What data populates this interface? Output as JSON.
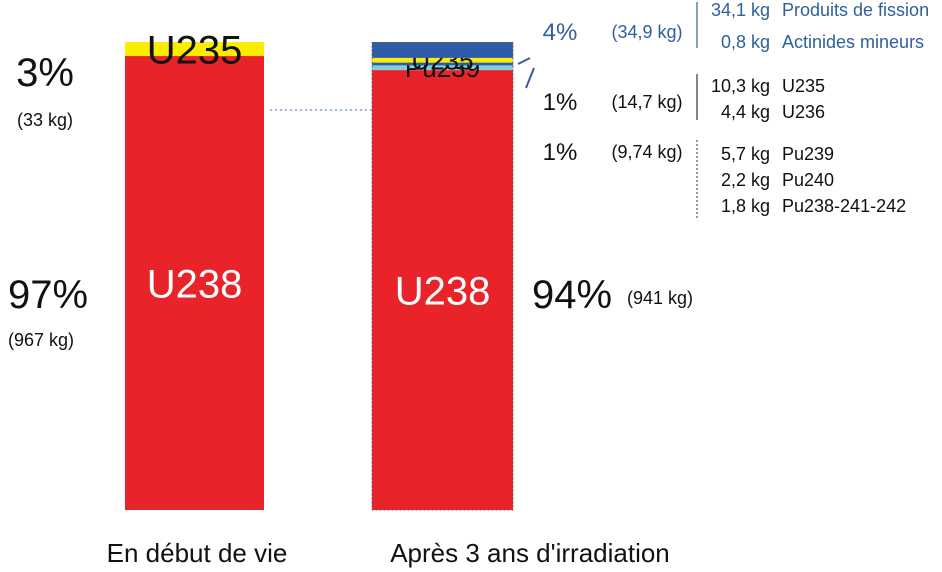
{
  "chart_data": {
    "type": "bar",
    "stacked": true,
    "categories": [
      "En début de vie",
      "Après 3 ans d'irradiation"
    ],
    "colors": {
      "U238": "#e8242a",
      "U235": "#fcec00",
      "PF": "#2e5ca8",
      "Pu": "#7ecfe0",
      "blue_text": "#2f5f9e",
      "text": "#111111"
    },
    "bars": [
      {
        "category": "En début de vie",
        "segments": [
          {
            "name": "U238",
            "label": "U238",
            "share": 97
          },
          {
            "name": "U235",
            "label": "U235",
            "share": 3
          }
        ],
        "annotations": [
          {
            "key": "u235",
            "pct": "3%",
            "kg": "(33 kg)"
          },
          {
            "key": "u238",
            "pct": "97%",
            "kg": "(967 kg)"
          }
        ]
      },
      {
        "category": "Après 3 ans d'irradiation",
        "segments": [
          {
            "name": "U238",
            "label": "U238",
            "share": 94
          },
          {
            "name": "Pu",
            "label": "Pu239",
            "share": 1
          },
          {
            "name": "PF",
            "label": "",
            "share": 0.6
          },
          {
            "name": "U235",
            "label": "U235",
            "share": 1
          },
          {
            "name": "PF",
            "label": "",
            "share": 3.4
          }
        ],
        "annotations": [
          {
            "key": "pf",
            "pct": "4%",
            "kg": "(34,9 kg)"
          },
          {
            "key": "u",
            "pct": "1%",
            "kg": "(14,7 kg)"
          },
          {
            "key": "pu",
            "pct": "1%",
            "kg": "(9,74 kg)"
          },
          {
            "key": "u238",
            "pct": "94%",
            "kg": "(941 kg)"
          }
        ],
        "details": [
          {
            "group": "pf",
            "mass": "34,1 kg",
            "label": "Produits de fission"
          },
          {
            "group": "pf",
            "mass": "0,8 kg",
            "label": "Actinides mineurs"
          },
          {
            "group": "u",
            "mass": "10,3 kg",
            "label": "U235"
          },
          {
            "group": "u",
            "mass": "4,4 kg",
            "label": "U236"
          },
          {
            "group": "pu",
            "mass": "5,7 kg",
            "label": "Pu239"
          },
          {
            "group": "pu",
            "mass": "2,2 kg",
            "label": "Pu240"
          },
          {
            "group": "pu",
            "mass": "1,8 kg",
            "label": "Pu238-241-242"
          }
        ]
      }
    ]
  }
}
